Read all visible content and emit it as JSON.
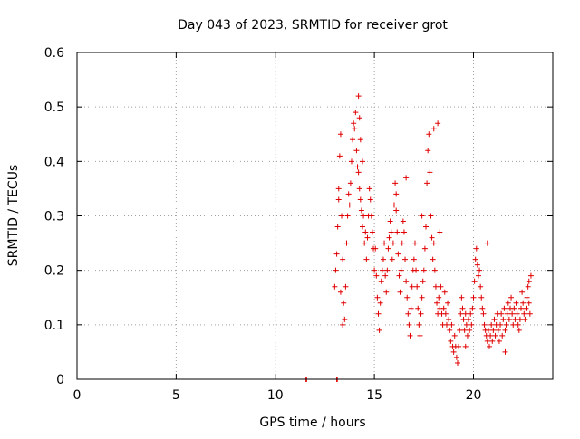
{
  "chart_data": {
    "type": "scatter",
    "title": "Day 043 of 2023, SRMTID for receiver grot",
    "xlabel": "GPS time / hours",
    "ylabel": "SRMTID / TECUs",
    "xlim": [
      0,
      24
    ],
    "ylim": [
      0,
      0.6
    ],
    "x_ticks": [
      0,
      5,
      10,
      15,
      20
    ],
    "x_tick_labels": [
      "0",
      "5",
      "10",
      "15",
      "20"
    ],
    "y_ticks": [
      0,
      0.1,
      0.2,
      0.3,
      0.4,
      0.5,
      0.6
    ],
    "y_tick_labels": [
      "0",
      "0.1",
      "0.2",
      "0.3",
      "0.4",
      "0.5",
      "0.6"
    ],
    "grid": true,
    "marker": "+",
    "color": "#e00000",
    "series": [
      {
        "name": "SRMTID",
        "x": [
          11.55,
          11.58,
          13.1,
          13.13,
          13.0,
          13.05,
          13.1,
          13.15,
          13.2,
          13.25,
          13.3,
          13.35,
          13.4,
          13.45,
          13.5,
          13.55,
          13.6,
          13.65,
          13.7,
          13.75,
          13.8,
          13.85,
          13.9,
          13.95,
          14.0,
          14.05,
          14.1,
          14.15,
          14.2,
          14.25,
          14.3,
          14.35,
          14.4,
          14.45,
          14.5,
          14.55,
          14.6,
          14.65,
          14.7,
          14.75,
          14.8,
          14.85,
          14.9,
          14.95,
          15.0,
          15.05,
          15.1,
          15.15,
          15.2,
          15.25,
          15.3,
          15.35,
          15.4,
          15.45,
          15.5,
          15.55,
          15.6,
          15.65,
          15.7,
          15.75,
          15.8,
          15.85,
          15.9,
          15.95,
          16.0,
          16.05,
          16.1,
          16.15,
          16.2,
          16.25,
          16.3,
          16.35,
          16.4,
          16.45,
          16.5,
          16.55,
          16.6,
          16.65,
          16.7,
          16.75,
          16.8,
          16.85,
          16.9,
          16.95,
          17.0,
          17.05,
          17.1,
          17.15,
          17.2,
          17.25,
          17.3,
          17.35,
          17.4,
          17.45,
          17.5,
          17.55,
          17.6,
          17.65,
          17.7,
          17.75,
          17.8,
          17.85,
          17.9,
          17.95,
          18.0,
          18.05,
          18.1,
          18.15,
          18.2,
          18.25,
          18.3,
          18.35,
          18.4,
          18.45,
          18.5,
          18.55,
          18.6,
          18.65,
          18.7,
          18.75,
          18.8,
          18.85,
          18.9,
          18.95,
          19.0,
          19.05,
          19.1,
          19.15,
          19.2,
          19.25,
          19.3,
          19.35,
          19.4,
          19.45,
          19.5,
          19.55,
          19.6,
          19.65,
          19.7,
          19.75,
          19.8,
          19.85,
          19.9,
          19.95,
          20.0,
          20.05,
          20.1,
          20.15,
          20.2,
          20.25,
          20.3,
          20.35,
          20.4,
          20.45,
          20.5,
          20.55,
          20.6,
          20.65,
          20.7,
          20.75,
          20.8,
          20.85,
          20.9,
          20.95,
          21.0,
          21.05,
          21.1,
          21.15,
          21.2,
          21.25,
          21.3,
          21.35,
          21.4,
          21.45,
          21.5,
          21.55,
          21.6,
          21.65,
          21.7,
          21.75,
          21.8,
          21.85,
          21.9,
          21.95,
          22.0,
          22.05,
          22.1,
          22.15,
          22.2,
          22.25,
          22.3,
          22.35,
          22.4,
          22.45,
          22.5,
          22.55,
          22.6,
          22.65,
          22.7,
          22.75,
          22.8,
          22.85,
          22.9,
          13.2,
          13.3,
          13.4,
          14.2,
          14.25,
          14.3,
          14.4,
          16.1,
          16.6,
          17.4,
          18.0,
          18.2,
          18.3,
          19.6,
          20.7,
          21.6,
          22.8
        ],
        "y": [
          0.0,
          0.0,
          0.0,
          0.0,
          0.17,
          0.2,
          0.23,
          0.28,
          0.35,
          0.41,
          0.45,
          0.3,
          0.22,
          0.14,
          0.11,
          0.17,
          0.25,
          0.3,
          0.34,
          0.32,
          0.36,
          0.4,
          0.44,
          0.47,
          0.46,
          0.49,
          0.42,
          0.39,
          0.38,
          0.35,
          0.33,
          0.31,
          0.28,
          0.3,
          0.25,
          0.27,
          0.22,
          0.26,
          0.3,
          0.35,
          0.33,
          0.3,
          0.27,
          0.24,
          0.2,
          0.24,
          0.19,
          0.15,
          0.12,
          0.09,
          0.14,
          0.18,
          0.2,
          0.22,
          0.25,
          0.19,
          0.16,
          0.2,
          0.24,
          0.26,
          0.29,
          0.27,
          0.22,
          0.25,
          0.32,
          0.36,
          0.31,
          0.27,
          0.23,
          0.19,
          0.16,
          0.2,
          0.25,
          0.29,
          0.27,
          0.22,
          0.18,
          0.15,
          0.12,
          0.1,
          0.08,
          0.13,
          0.17,
          0.2,
          0.22,
          0.25,
          0.2,
          0.17,
          0.13,
          0.1,
          0.08,
          0.12,
          0.15,
          0.18,
          0.2,
          0.24,
          0.28,
          0.36,
          0.42,
          0.45,
          0.38,
          0.3,
          0.26,
          0.22,
          0.25,
          0.2,
          0.17,
          0.14,
          0.12,
          0.15,
          0.13,
          0.17,
          0.12,
          0.1,
          0.13,
          0.16,
          0.12,
          0.1,
          0.14,
          0.11,
          0.09,
          0.07,
          0.1,
          0.06,
          0.05,
          0.08,
          0.06,
          0.04,
          0.03,
          0.06,
          0.09,
          0.12,
          0.15,
          0.13,
          0.11,
          0.09,
          0.12,
          0.1,
          0.08,
          0.11,
          0.09,
          0.12,
          0.1,
          0.13,
          0.15,
          0.18,
          0.22,
          0.24,
          0.21,
          0.19,
          0.2,
          0.17,
          0.15,
          0.13,
          0.12,
          0.1,
          0.09,
          0.08,
          0.07,
          0.09,
          0.06,
          0.08,
          0.1,
          0.07,
          0.09,
          0.11,
          0.08,
          0.1,
          0.12,
          0.09,
          0.07,
          0.1,
          0.12,
          0.08,
          0.11,
          0.13,
          0.09,
          0.1,
          0.12,
          0.14,
          0.11,
          0.13,
          0.15,
          0.12,
          0.1,
          0.13,
          0.11,
          0.14,
          0.12,
          0.1,
          0.09,
          0.11,
          0.13,
          0.16,
          0.14,
          0.12,
          0.11,
          0.13,
          0.15,
          0.17,
          0.14,
          0.12,
          0.19,
          0.33,
          0.16,
          0.1,
          0.52,
          0.48,
          0.44,
          0.4,
          0.34,
          0.37,
          0.3,
          0.46,
          0.47,
          0.27,
          0.06,
          0.25,
          0.05,
          0.18
        ]
      }
    ]
  }
}
